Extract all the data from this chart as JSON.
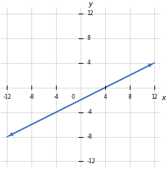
{
  "xlim": [
    -13,
    13
  ],
  "ylim": [
    -13,
    13
  ],
  "xticks": [
    -12,
    -8,
    -4,
    4,
    8,
    12
  ],
  "yticks": [
    -12,
    -8,
    -4,
    4,
    8,
    12
  ],
  "slope": 0.5,
  "intercept": -2,
  "x_line_start": -12,
  "x_line_end": 12,
  "line_color": "#4472c4",
  "line_width": 1.2,
  "grid_color": "#c8c8c8",
  "axis_color": "#000000",
  "xlabel": "x",
  "ylabel": "y",
  "tick_fontsize": 5.5,
  "label_fontsize": 7.5
}
